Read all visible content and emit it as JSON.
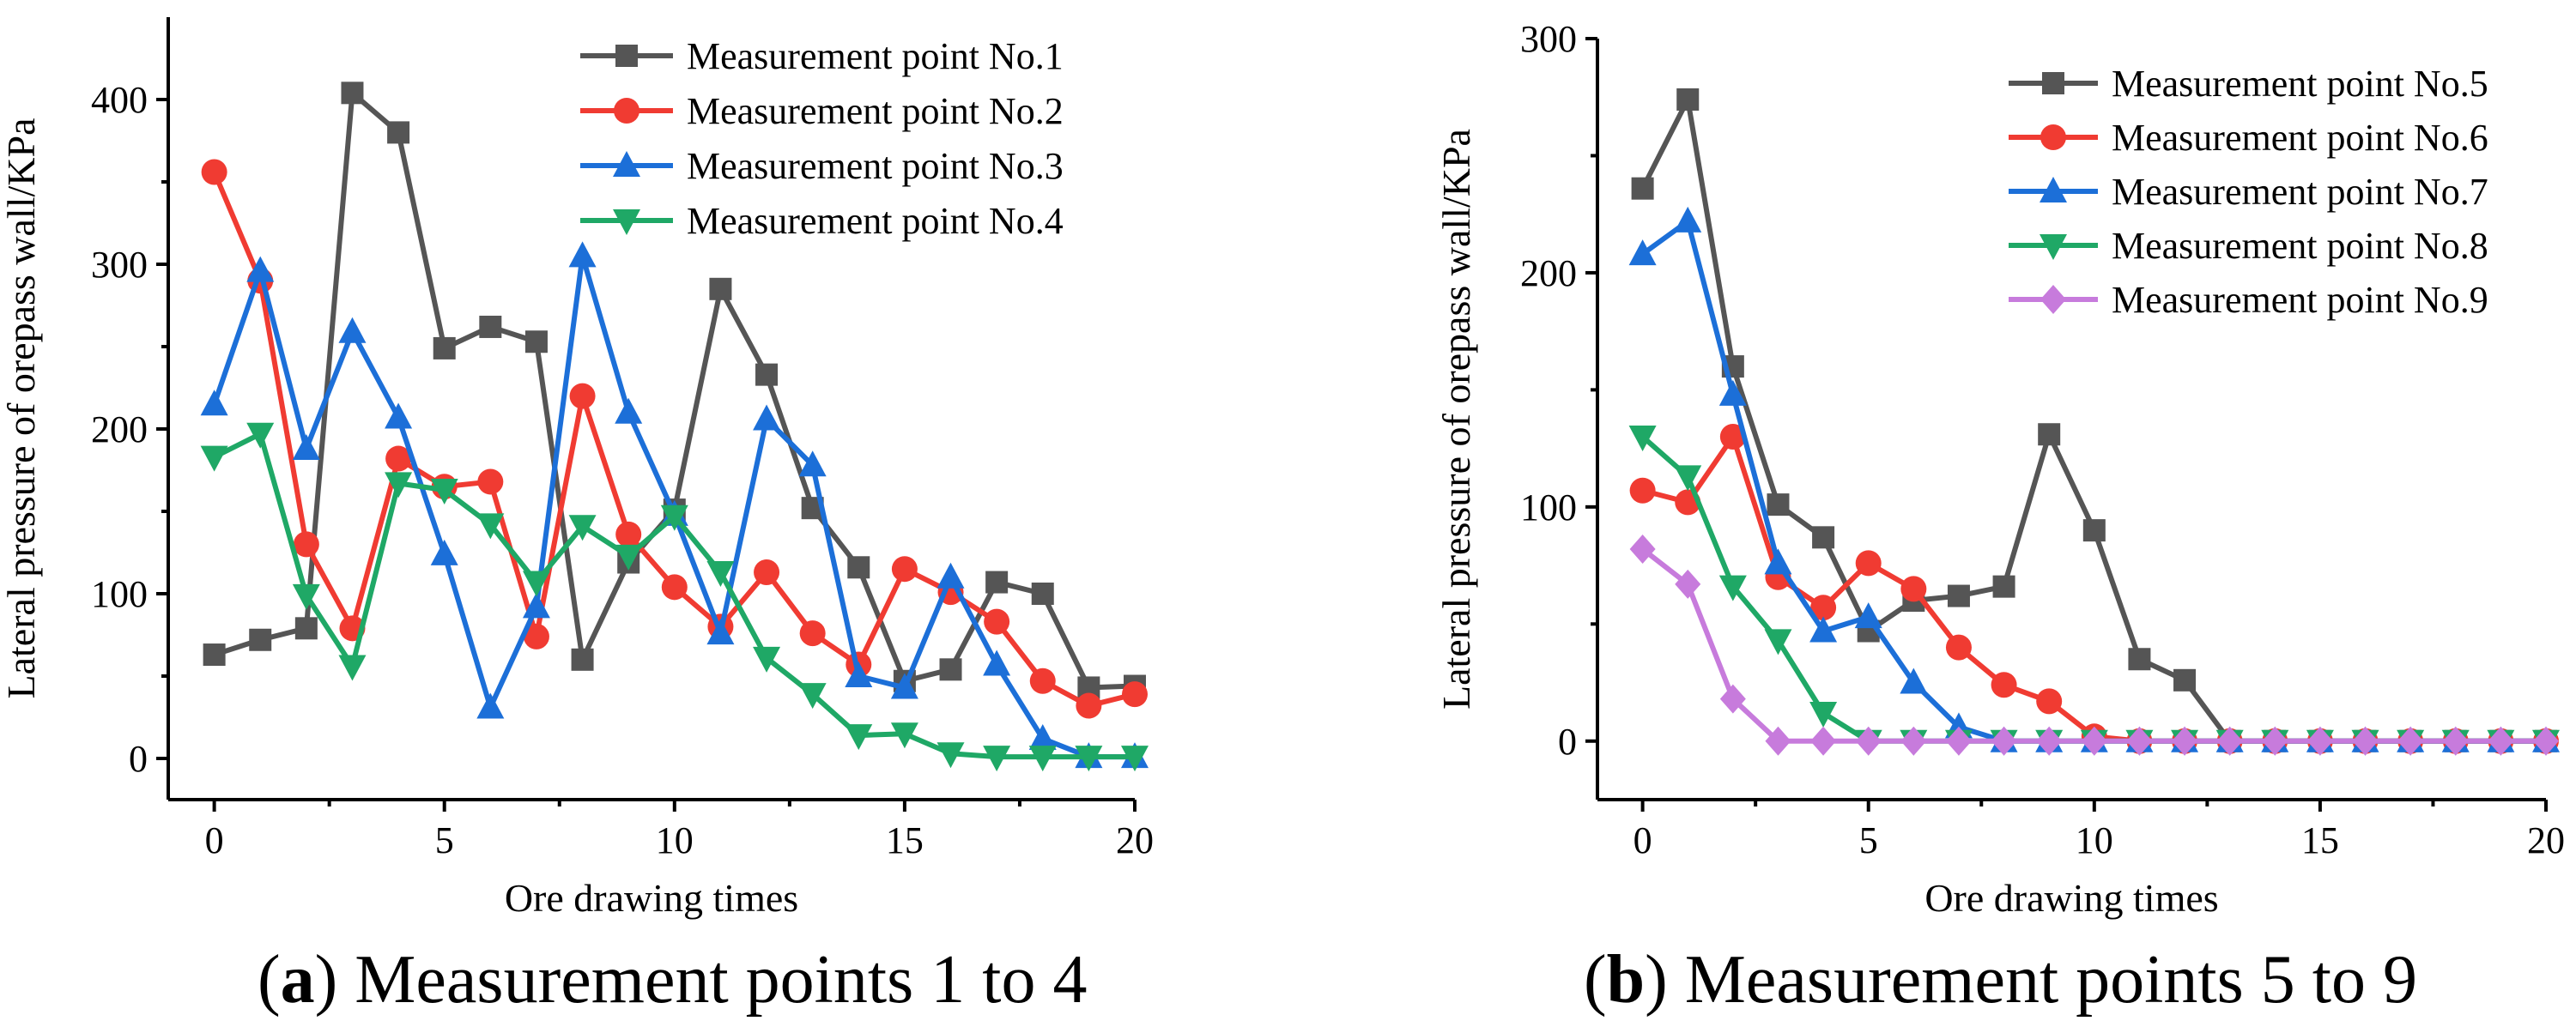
{
  "chart_data": [
    {
      "type": "line",
      "caption_letter": "a",
      "caption_text": " Measurement points 1 to 4",
      "xlabel": "Ore drawing times",
      "ylabel": "Lateral pressure of orepass wall/KPa",
      "xlim": [
        -1,
        20
      ],
      "ylim": [
        -25,
        450
      ],
      "xticks": [
        0,
        5,
        10,
        15,
        20
      ],
      "yticks": [
        0,
        100,
        200,
        300,
        400
      ],
      "grid": false,
      "legend_position": "top-right",
      "x": [
        0,
        1,
        2,
        3,
        4,
        5,
        6,
        7,
        8,
        9,
        10,
        11,
        12,
        13,
        14,
        15,
        16,
        17,
        18,
        19,
        20
      ],
      "series": [
        {
          "name": "Measurement point No.1",
          "color": "#555555",
          "marker": "square",
          "values": [
            63,
            72,
            79,
            404,
            380,
            249,
            262,
            253,
            60,
            119,
            151,
            285,
            233,
            152,
            116,
            47,
            54,
            107,
            100,
            43,
            44
          ]
        },
        {
          "name": "Measurement point No.2",
          "color": "#f03b32",
          "marker": "circle",
          "values": [
            356,
            290,
            130,
            79,
            182,
            165,
            168,
            74,
            220,
            136,
            104,
            80,
            113,
            76,
            57,
            115,
            101,
            83,
            47,
            32,
            39
          ]
        },
        {
          "name": "Measurement point No.3",
          "color": "#1c6fd8",
          "marker": "triangle-up",
          "values": [
            215,
            296,
            188,
            259,
            207,
            124,
            31,
            92,
            305,
            210,
            148,
            76,
            206,
            178,
            50,
            43,
            110,
            57,
            12,
            1,
            1
          ]
        },
        {
          "name": "Measurement point No.4",
          "color": "#1fa866",
          "marker": "triangle-down",
          "values": [
            183,
            197,
            99,
            56,
            167,
            163,
            142,
            107,
            141,
            123,
            147,
            113,
            61,
            39,
            14,
            15,
            3,
            1,
            1,
            1,
            1
          ]
        }
      ]
    },
    {
      "type": "line",
      "caption_letter": "b",
      "caption_text": " Measurement points 5 to 9",
      "xlabel": "Ore drawing times",
      "ylabel": "Lateral pressure of orepass wall/KPa",
      "xlim": [
        -1,
        20
      ],
      "ylim": [
        -25,
        300
      ],
      "xticks": [
        0,
        5,
        10,
        15,
        20
      ],
      "yticks": [
        0,
        100,
        200,
        300
      ],
      "grid": false,
      "legend_position": "top-right",
      "x": [
        0,
        1,
        2,
        3,
        4,
        5,
        6,
        7,
        8,
        9,
        10,
        11,
        12,
        13,
        14,
        15,
        16,
        17,
        18,
        19,
        20
      ],
      "series": [
        {
          "name": "Measurement point No.5",
          "color": "#555555",
          "marker": "square",
          "values": [
            236,
            274,
            160,
            101,
            87,
            47,
            60,
            62,
            66,
            131,
            90,
            35,
            26,
            0,
            0,
            0,
            0,
            0,
            0,
            0,
            0
          ]
        },
        {
          "name": "Measurement point No.6",
          "color": "#f03b32",
          "marker": "circle",
          "values": [
            107,
            102,
            130,
            70,
            57,
            76,
            65,
            40,
            24,
            17,
            2,
            0,
            0,
            0,
            0,
            0,
            0,
            0,
            0,
            0,
            0
          ]
        },
        {
          "name": "Measurement point No.7",
          "color": "#1c6fd8",
          "marker": "triangle-up",
          "values": [
            208,
            222,
            148,
            76,
            47,
            53,
            25,
            6,
            0,
            0,
            0,
            0,
            0,
            0,
            0,
            0,
            0,
            0,
            0,
            0,
            0
          ]
        },
        {
          "name": "Measurement point No.8",
          "color": "#1fa866",
          "marker": "triangle-down",
          "values": [
            130,
            113,
            66,
            43,
            12,
            0,
            0,
            0,
            0,
            0,
            0,
            0,
            0,
            0,
            0,
            0,
            0,
            0,
            0,
            0,
            0
          ]
        },
        {
          "name": "Measurement point No.9",
          "color": "#c77bdc",
          "marker": "diamond",
          "values": [
            82,
            67,
            18,
            0,
            0,
            0,
            0,
            0,
            0,
            0,
            0,
            0,
            0,
            0,
            0,
            0,
            0,
            0,
            0,
            0,
            0
          ]
        }
      ]
    }
  ]
}
